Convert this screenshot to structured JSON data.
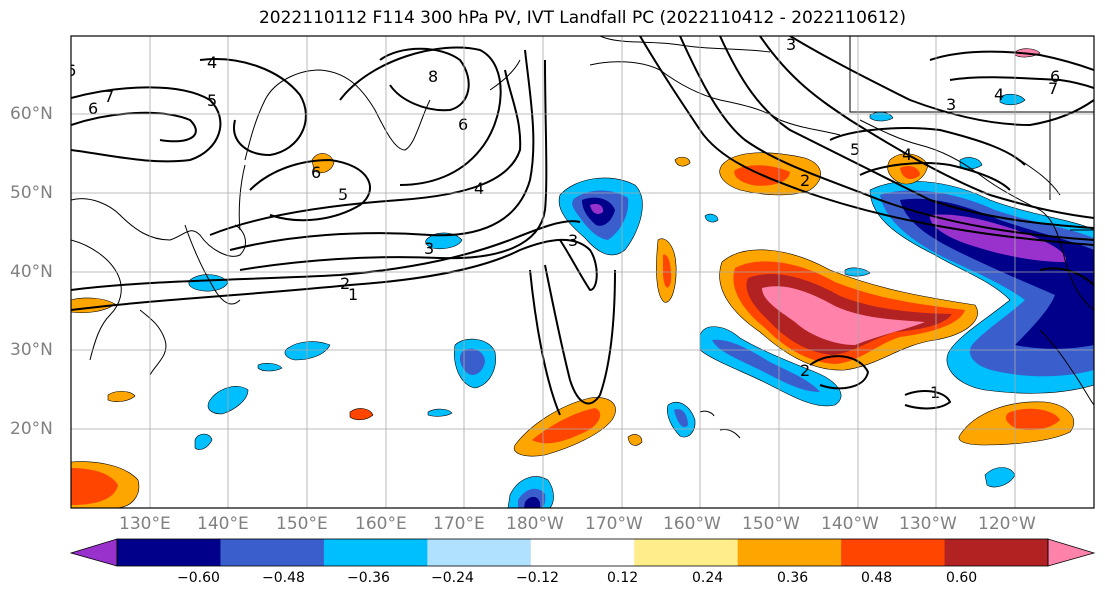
{
  "title": "2022110112 F114 300 hPa PV, IVT Landfall PC (2022110412 - 2022110612)",
  "map": {
    "lat_labels": [
      "60°N",
      "50°N",
      "40°N",
      "30°N",
      "20°N"
    ],
    "lon_labels": [
      "130°E",
      "140°E",
      "150°E",
      "160°E",
      "170°E",
      "180°W",
      "170°W",
      "160°W",
      "150°W",
      "140°W",
      "130°W",
      "120°W"
    ],
    "contour_labels": [
      "6",
      "7",
      "4",
      "5",
      "8",
      "6",
      "6",
      "5",
      "4",
      "3",
      "2",
      "1",
      "3",
      "3",
      "2",
      "3",
      "4",
      "5",
      "6",
      "7",
      "6",
      "2",
      "1",
      "4"
    ]
  },
  "colorbar": {
    "ticks": [
      "−0.60",
      "−0.48",
      "−0.36",
      "−0.24",
      "−0.12",
      "0.12",
      "0.24",
      "0.36",
      "0.48",
      "0.60"
    ],
    "colors": [
      "#9932cc",
      "#00008b",
      "#3a5fcd",
      "#00bfff",
      "#b0e2ff",
      "#ffffff",
      "#ffec8b",
      "#ffa500",
      "#ff4500",
      "#b22222",
      "#ff82ab"
    ]
  }
}
